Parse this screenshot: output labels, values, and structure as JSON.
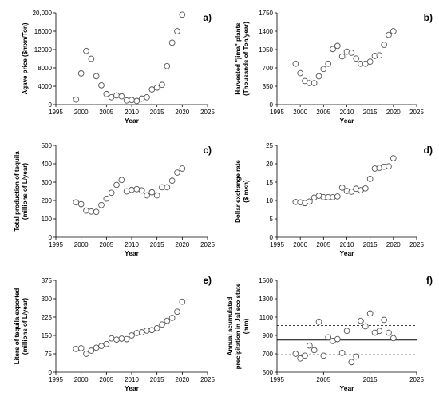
{
  "chart_data": [
    {
      "panel_label": "a)",
      "type": "scatter",
      "xlabel": "Year",
      "ylabel": [
        "Agave price ($mxn/Ton)"
      ],
      "xlim": [
        1995,
        2025
      ],
      "ylim": [
        0,
        20000
      ],
      "xticks": [
        1995,
        2000,
        2005,
        2010,
        2015,
        2020,
        2025
      ],
      "yticks": [
        0,
        4000,
        8000,
        12000,
        16000,
        20000
      ],
      "ytick_labels": [
        "0",
        "4000",
        "8000",
        "12000",
        "16000",
        "20,000"
      ],
      "points": [
        [
          1999,
          1100
        ],
        [
          2000,
          6800
        ],
        [
          2001,
          11700
        ],
        [
          2002,
          10000
        ],
        [
          2003,
          6200
        ],
        [
          2004,
          4200
        ],
        [
          2005,
          2300
        ],
        [
          2006,
          1600
        ],
        [
          2007,
          2000
        ],
        [
          2008,
          1800
        ],
        [
          2009,
          900
        ],
        [
          2010,
          1000
        ],
        [
          2011,
          800
        ],
        [
          2012,
          1300
        ],
        [
          2013,
          1600
        ],
        [
          2014,
          3300
        ],
        [
          2015,
          3700
        ],
        [
          2016,
          4300
        ],
        [
          2017,
          8400
        ],
        [
          2018,
          13500
        ],
        [
          2019,
          16000
        ],
        [
          2020,
          19600
        ]
      ]
    },
    {
      "panel_label": "b)",
      "type": "scatter",
      "xlabel": "Year",
      "ylabel": [
        "Harvested \"jima\" plants",
        "(Thousands of Ton/year)"
      ],
      "xlim": [
        1995,
        2025
      ],
      "ylim": [
        0,
        1750
      ],
      "xticks": [
        1995,
        2000,
        2005,
        2010,
        2015,
        2020,
        2025
      ],
      "yticks": [
        0,
        350,
        700,
        1050,
        1400,
        1750
      ],
      "ytick_labels": [
        "0",
        "350",
        "700",
        "1050",
        "1400",
        "1750"
      ],
      "points": [
        [
          1999,
          780
        ],
        [
          2000,
          600
        ],
        [
          2001,
          450
        ],
        [
          2002,
          410
        ],
        [
          2003,
          410
        ],
        [
          2004,
          540
        ],
        [
          2005,
          680
        ],
        [
          2006,
          780
        ],
        [
          2007,
          1060
        ],
        [
          2008,
          1120
        ],
        [
          2009,
          920
        ],
        [
          2010,
          1010
        ],
        [
          2011,
          990
        ],
        [
          2012,
          880
        ],
        [
          2013,
          780
        ],
        [
          2014,
          780
        ],
        [
          2015,
          820
        ],
        [
          2016,
          930
        ],
        [
          2017,
          940
        ],
        [
          2018,
          1140
        ],
        [
          2019,
          1330
        ],
        [
          2020,
          1400
        ]
      ]
    },
    {
      "panel_label": "c)",
      "type": "scatter",
      "xlabel": "Year",
      "ylabel": [
        "Total production of tequila",
        "(millions of L/year)"
      ],
      "xlim": [
        1995,
        2025
      ],
      "ylim": [
        0,
        500
      ],
      "xticks": [
        1995,
        2000,
        2005,
        2010,
        2015,
        2020,
        2025
      ],
      "yticks": [
        0,
        100,
        200,
        300,
        400,
        500
      ],
      "ytick_labels": [
        "0",
        "100",
        "200",
        "300",
        "400",
        "500"
      ],
      "points": [
        [
          1999,
          190
        ],
        [
          2000,
          180
        ],
        [
          2001,
          145
        ],
        [
          2002,
          140
        ],
        [
          2003,
          138
        ],
        [
          2004,
          175
        ],
        [
          2005,
          210
        ],
        [
          2006,
          242
        ],
        [
          2007,
          285
        ],
        [
          2008,
          312
        ],
        [
          2009,
          250
        ],
        [
          2010,
          258
        ],
        [
          2011,
          262
        ],
        [
          2012,
          255
        ],
        [
          2013,
          228
        ],
        [
          2014,
          245
        ],
        [
          2015,
          228
        ],
        [
          2016,
          272
        ],
        [
          2017,
          272
        ],
        [
          2018,
          308
        ],
        [
          2019,
          352
        ],
        [
          2020,
          374
        ]
      ]
    },
    {
      "panel_label": "d)",
      "type": "scatter",
      "xlabel": "Year",
      "ylabel": [
        "Dollar exchange rate",
        "($ mxn)"
      ],
      "xlim": [
        1995,
        2025
      ],
      "ylim": [
        0,
        25
      ],
      "xticks": [
        1995,
        2000,
        2005,
        2010,
        2015,
        2020,
        2025
      ],
      "yticks": [
        0,
        5,
        10,
        15,
        20,
        25
      ],
      "ytick_labels": [
        "0",
        "5",
        "10",
        "15",
        "20",
        "25"
      ],
      "points": [
        [
          1999,
          9.6
        ],
        [
          2000,
          9.5
        ],
        [
          2001,
          9.3
        ],
        [
          2002,
          9.7
        ],
        [
          2003,
          10.8
        ],
        [
          2004,
          11.3
        ],
        [
          2005,
          10.9
        ],
        [
          2006,
          10.9
        ],
        [
          2007,
          10.9
        ],
        [
          2008,
          11.1
        ],
        [
          2009,
          13.5
        ],
        [
          2010,
          12.6
        ],
        [
          2011,
          12.4
        ],
        [
          2012,
          13.2
        ],
        [
          2013,
          12.8
        ],
        [
          2014,
          13.3
        ],
        [
          2015,
          15.9
        ],
        [
          2016,
          18.7
        ],
        [
          2017,
          18.9
        ],
        [
          2018,
          19.2
        ],
        [
          2019,
          19.3
        ],
        [
          2020,
          21.5
        ]
      ]
    },
    {
      "panel_label": "e)",
      "type": "scatter",
      "xlabel": "Year",
      "ylabel": [
        "Liters of tequila exported",
        "(millions of L/year)"
      ],
      "xlim": [
        1995,
        2025
      ],
      "ylim": [
        0,
        375
      ],
      "xticks": [
        1995,
        2000,
        2005,
        2010,
        2015,
        2020,
        2025
      ],
      "yticks": [
        0,
        75,
        150,
        225,
        300,
        375
      ],
      "ytick_labels": [
        "0",
        "75",
        "150",
        "225",
        "300",
        "375"
      ],
      "points": [
        [
          1999,
          95
        ],
        [
          2000,
          98
        ],
        [
          2001,
          75
        ],
        [
          2002,
          88
        ],
        [
          2003,
          100
        ],
        [
          2004,
          107
        ],
        [
          2005,
          115
        ],
        [
          2006,
          138
        ],
        [
          2007,
          133
        ],
        [
          2008,
          137
        ],
        [
          2009,
          135
        ],
        [
          2010,
          150
        ],
        [
          2011,
          160
        ],
        [
          2012,
          163
        ],
        [
          2013,
          170
        ],
        [
          2014,
          172
        ],
        [
          2015,
          180
        ],
        [
          2016,
          195
        ],
        [
          2017,
          210
        ],
        [
          2018,
          222
        ],
        [
          2019,
          247
        ],
        [
          2020,
          288
        ]
      ]
    },
    {
      "panel_label": "f)",
      "type": "scatter",
      "xlabel": "Year",
      "ylabel": [
        "Annual acumulated",
        "precipitation in Jalisco state",
        "(mm)"
      ],
      "xlim": [
        1995,
        2025
      ],
      "ylim": [
        500,
        1500
      ],
      "xticks": [
        1995,
        2005,
        2015,
        2025
      ],
      "yticks": [
        500,
        700,
        900,
        1100,
        1300,
        1500
      ],
      "ytick_labels": [
        "500",
        "700",
        "900",
        "1100",
        "1300",
        "1500"
      ],
      "mean_line": 850,
      "sd_lines": [
        690,
        1010
      ],
      "points": [
        [
          1999,
          700
        ],
        [
          2000,
          650
        ],
        [
          2001,
          680
        ],
        [
          2002,
          790
        ],
        [
          2003,
          740
        ],
        [
          2004,
          1050
        ],
        [
          2005,
          680
        ],
        [
          2006,
          880
        ],
        [
          2007,
          840
        ],
        [
          2008,
          860
        ],
        [
          2009,
          710
        ],
        [
          2010,
          950
        ],
        [
          2011,
          610
        ],
        [
          2012,
          670
        ],
        [
          2013,
          1060
        ],
        [
          2014,
          1000
        ],
        [
          2015,
          1140
        ],
        [
          2016,
          930
        ],
        [
          2017,
          950
        ],
        [
          2018,
          1070
        ],
        [
          2019,
          930
        ],
        [
          2020,
          870
        ]
      ]
    }
  ]
}
